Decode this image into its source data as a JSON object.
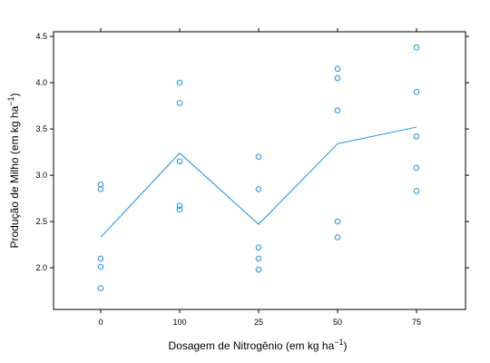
{
  "chart_data": {
    "type": "scatter",
    "xlabel": "Dosagem de Nitrogênio (em kg ha",
    "xlabel_exponent": "−1",
    "xlabel_close": ")",
    "ylabel": "Produção de Milho (em kg ha",
    "ylabel_exponent": "−1",
    "ylabel_close": ")",
    "categories": [
      "0",
      "100",
      "25",
      "50",
      "75"
    ],
    "ylim": [
      1.55,
      4.55
    ],
    "yticks": [
      2.0,
      2.5,
      3.0,
      3.5,
      4.0,
      4.5
    ],
    "ytick_labels": [
      "2.0",
      "2.5",
      "3.0",
      "3.5",
      "4.0",
      "4.5"
    ],
    "grid": false,
    "color": "#1f8fe6",
    "points": [
      {
        "x": "0",
        "values": [
          2.9,
          2.85,
          2.1,
          2.01,
          1.78
        ]
      },
      {
        "x": "100",
        "values": [
          4.0,
          3.78,
          3.15,
          2.67,
          2.63
        ]
      },
      {
        "x": "25",
        "values": [
          3.2,
          2.85,
          2.22,
          2.1,
          1.98
        ]
      },
      {
        "x": "50",
        "values": [
          4.15,
          4.05,
          3.7,
          2.5,
          2.33
        ]
      },
      {
        "x": "75",
        "values": [
          4.38,
          3.9,
          3.42,
          3.08,
          2.83
        ]
      }
    ],
    "mean_line": {
      "x": [
        "0",
        "100",
        "25",
        "50",
        "75"
      ],
      "values": [
        2.33,
        3.24,
        2.47,
        3.34,
        3.52
      ]
    }
  }
}
